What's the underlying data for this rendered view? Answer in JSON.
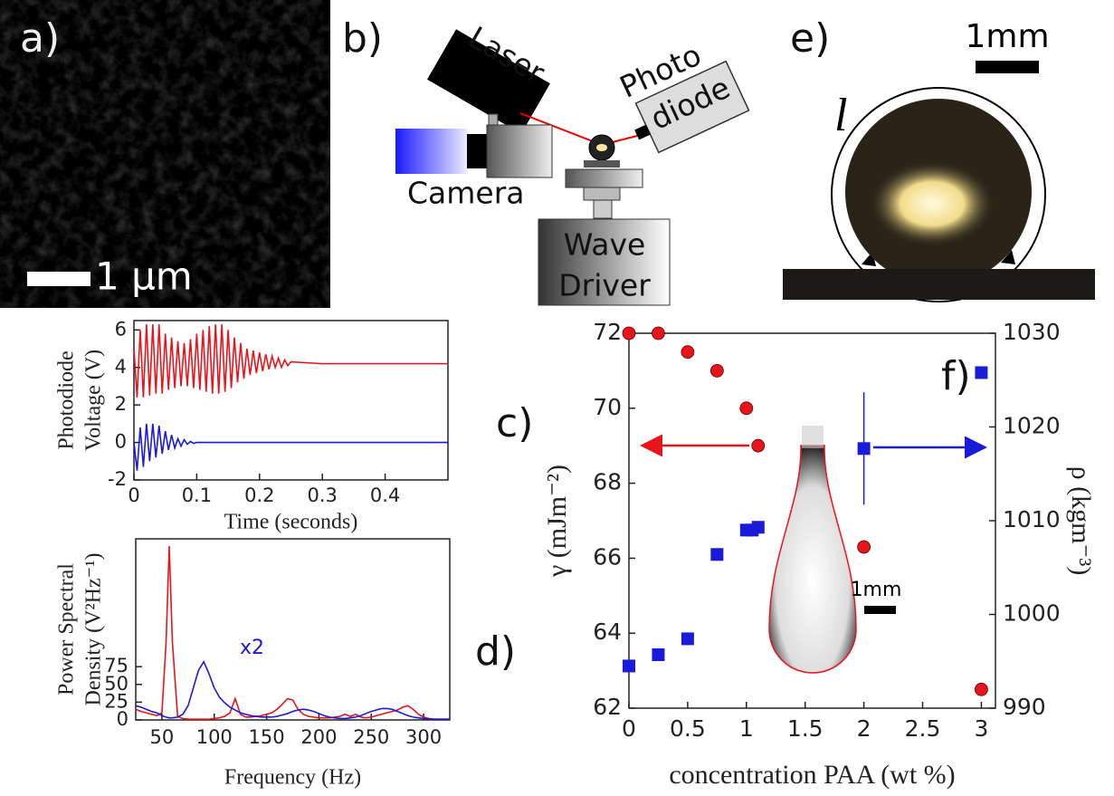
{
  "panel_a": {
    "label": "a)",
    "scale_bar": "1 μm"
  },
  "panel_b": {
    "label": "b)",
    "laser": "Laser",
    "photodiode": [
      "Photo",
      "diode"
    ],
    "camera": "Camera",
    "wave_driver": [
      "Wave",
      "Driver"
    ]
  },
  "panel_e": {
    "label": "e)",
    "scale_bar": "1mm",
    "arc_label": "l"
  },
  "chart_data": [
    {
      "type": "line",
      "label": "c)",
      "xlabel": "Time (seconds)",
      "ylabel": [
        "Photodiode",
        "Voltage (V)"
      ],
      "xlim": [
        0,
        0.5
      ],
      "xticks": [
        0,
        0.1,
        0.2,
        0.3,
        0.4
      ],
      "ylim": [
        -2,
        6.5
      ],
      "yticks": [
        -2,
        0,
        2,
        4,
        6
      ],
      "x": [
        0,
        0.005,
        0.01,
        0.015,
        0.02,
        0.025,
        0.03,
        0.035,
        0.04,
        0.045,
        0.05,
        0.055,
        0.06,
        0.065,
        0.07,
        0.075,
        0.08,
        0.085,
        0.09,
        0.095,
        0.1,
        0.105,
        0.11,
        0.115,
        0.12,
        0.125,
        0.13,
        0.135,
        0.14,
        0.145,
        0.15,
        0.155,
        0.16,
        0.165,
        0.17,
        0.175,
        0.18,
        0.185,
        0.19,
        0.195,
        0.2,
        0.205,
        0.21,
        0.215,
        0.22,
        0.225,
        0.23,
        0.235,
        0.24,
        0.245,
        0.25,
        0.3,
        0.35,
        0.4,
        0.45,
        0.5
      ],
      "series": [
        {
          "color": "#e8141c",
          "values": [
            5.0,
            2.4,
            6.0,
            2.4,
            6.3,
            2.5,
            6.3,
            2.6,
            6.3,
            2.6,
            5.8,
            2.8,
            5.6,
            2.9,
            5.4,
            3.0,
            5.3,
            3.0,
            5.5,
            2.9,
            5.8,
            2.8,
            6.0,
            2.7,
            6.2,
            2.6,
            6.3,
            2.6,
            6.3,
            2.7,
            6.0,
            2.9,
            5.6,
            3.2,
            5.3,
            3.4,
            5.0,
            3.6,
            4.9,
            3.7,
            4.8,
            3.8,
            4.7,
            3.9,
            4.6,
            4.0,
            4.5,
            4.0,
            4.4,
            4.1,
            4.3,
            4.2,
            4.2,
            4.2,
            4.2,
            4.2
          ]
        },
        {
          "color": "#1a1adb",
          "values": [
            0,
            -1.5,
            0.8,
            -1.3,
            1.0,
            -1.0,
            1.0,
            -0.8,
            0.9,
            -0.6,
            0.6,
            -0.4,
            0.4,
            -0.3,
            0.2,
            -0.2,
            0.15,
            -0.1,
            0.05,
            -0.05,
            0,
            0,
            0,
            0,
            0,
            0,
            0,
            0,
            0,
            0,
            0,
            0,
            0,
            0,
            0,
            0,
            0,
            0,
            0,
            0,
            0,
            0,
            0,
            0,
            0,
            0,
            0,
            0,
            0,
            0,
            0,
            0,
            0,
            0,
            0,
            0
          ]
        }
      ]
    },
    {
      "type": "line",
      "label": "d)",
      "xlabel": "Frequency (Hz)",
      "ylabel": [
        "Power Spectral",
        "Density (V²Hz⁻¹)"
      ],
      "annotation": "x2",
      "xlim": [
        25,
        325
      ],
      "xticks": [
        50,
        100,
        150,
        200,
        250,
        300
      ],
      "ylim": [
        0,
        255
      ],
      "yticks": [
        0,
        25,
        50,
        75
      ],
      "x": [
        25,
        30,
        35,
        40,
        45,
        50,
        54,
        57,
        60,
        65,
        70,
        75,
        80,
        85,
        90,
        95,
        100,
        105,
        110,
        115,
        120,
        125,
        130,
        135,
        140,
        145,
        150,
        155,
        160,
        165,
        170,
        175,
        180,
        185,
        190,
        195,
        200,
        205,
        210,
        215,
        220,
        225,
        230,
        235,
        240,
        245,
        250,
        255,
        260,
        265,
        270,
        275,
        280,
        285,
        290,
        295,
        300,
        305,
        310,
        315,
        320,
        325
      ],
      "series": [
        {
          "color": "#e8141c",
          "values": [
            15,
            12,
            10,
            8,
            6,
            10,
            110,
            245,
            110,
            5,
            2,
            1,
            1,
            1,
            1,
            1,
            2,
            3,
            5,
            10,
            30,
            8,
            4,
            4,
            5,
            6,
            8,
            10,
            15,
            22,
            30,
            28,
            15,
            8,
            5,
            4,
            3,
            3,
            3,
            4,
            5,
            8,
            5,
            8,
            4,
            3,
            4,
            6,
            8,
            10,
            12,
            14,
            18,
            20,
            15,
            8,
            4,
            2,
            1,
            1,
            1,
            1
          ]
        },
        {
          "color": "#1a1adb",
          "values": [
            20,
            18,
            15,
            12,
            10,
            6,
            4,
            3,
            3,
            4,
            8,
            20,
            45,
            70,
            82,
            65,
            45,
            32,
            24,
            18,
            14,
            10,
            8,
            6,
            5,
            4,
            4,
            4,
            5,
            7,
            9,
            12,
            14,
            15,
            14,
            12,
            9,
            6,
            4,
            3,
            2,
            2,
            3,
            4,
            6,
            9,
            12,
            14,
            16,
            16,
            15,
            12,
            9,
            6,
            4,
            3,
            2,
            1,
            1,
            1,
            1,
            1
          ]
        }
      ]
    },
    {
      "type": "scatter",
      "label": "f)",
      "xlabel": "concentration PAA (wt %)",
      "ylabel": "γ (mJm⁻²)",
      "y2label": "ρ (kgm⁻³)",
      "inset_scale": "1mm",
      "xlim": [
        0,
        3.12
      ],
      "xticks": [
        0,
        0.5,
        1,
        1.5,
        2,
        2.5,
        3
      ],
      "ylim": [
        62,
        72
      ],
      "yticks": [
        62,
        64,
        66,
        68,
        70,
        72
      ],
      "y2lim": [
        990,
        1030
      ],
      "y2ticks": [
        990,
        1000,
        1010,
        1020,
        1030
      ],
      "series": [
        {
          "color": "#e8141c",
          "marker": "circle",
          "x": [
            0,
            0.25,
            0.5,
            0.75,
            1,
            1.1,
            2,
            3
          ],
          "values": [
            72,
            72,
            71.5,
            71,
            70,
            69,
            66.3,
            62.5
          ]
        },
        {
          "color": "#1a1adb",
          "marker": "square",
          "axis": "y2",
          "x": [
            0,
            0.25,
            0.5,
            0.75,
            1,
            1.05,
            1.1,
            2,
            3
          ],
          "values": [
            994.5,
            995.7,
            997.4,
            1006.4,
            1009,
            1009,
            1009.3,
            1017.7,
            1025.8
          ],
          "errors": [
            null,
            null,
            null,
            null,
            null,
            null,
            null,
            6,
            null
          ]
        }
      ]
    }
  ]
}
